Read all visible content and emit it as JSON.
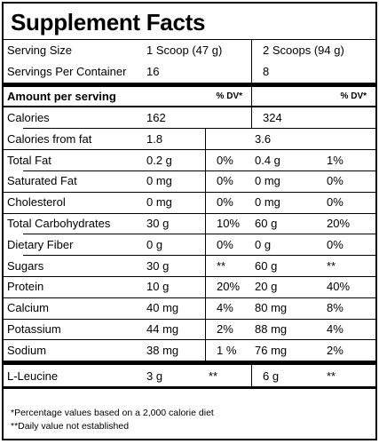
{
  "title": "Supplement Facts",
  "serving_size": {
    "label": "Serving Size",
    "col1": "1 Scoop (47 g)",
    "col2": "2 Scoops (94 g)"
  },
  "servings_per_container": {
    "label": "Servings Per Container",
    "col1": "16",
    "col2": "8"
  },
  "header": {
    "label": "Amount per serving",
    "dv1": "% DV*",
    "dv2": "% DV*"
  },
  "rows": [
    {
      "cells": [
        "Calories",
        "162",
        "",
        "324",
        ""
      ]
    },
    {
      "cells": [
        "Calories from fat",
        "1.8",
        "",
        "3.6",
        ""
      ],
      "indent": true
    },
    {
      "cells": [
        "Total Fat",
        "0.2 g",
        "0%",
        "0.4 g",
        "1%"
      ]
    },
    {
      "cells": [
        "Saturated Fat",
        "0 mg",
        "0%",
        "0 mg",
        "0%"
      ],
      "indent": true
    },
    {
      "cells": [
        "Cholesterol",
        "0 mg",
        "0%",
        "0 mg",
        "0%"
      ]
    },
    {
      "cells": [
        "Total Carbohydrates",
        "30 g",
        "10%",
        "60 g",
        "20%"
      ]
    },
    {
      "cells": [
        "Dietary Fiber",
        "0 g",
        "0%",
        "0 g",
        "0%"
      ],
      "indent": true
    },
    {
      "cells": [
        "Sugars",
        "30 g",
        "**",
        "60 g",
        "**"
      ],
      "indent": true
    },
    {
      "cells": [
        "Protein",
        "10 g",
        "20%",
        "20 g",
        "40%"
      ]
    },
    {
      "cells": [
        "Calcium",
        "40 mg",
        "4%",
        "80 mg",
        "8%"
      ]
    },
    {
      "cells": [
        "Potassium",
        "44 mg",
        "2%",
        "88 mg",
        "4%"
      ]
    },
    {
      "cells": [
        "Sodium",
        "38 mg",
        "1 %",
        "76 mg",
        "2%"
      ]
    },
    {
      "cells": [
        "L-Leucine",
        "3 g",
        "**",
        "6 g",
        "**"
      ]
    }
  ],
  "footnotes": [
    "*Percentage values based on a 2,000 calorie diet",
    "**Daily value not established"
  ]
}
